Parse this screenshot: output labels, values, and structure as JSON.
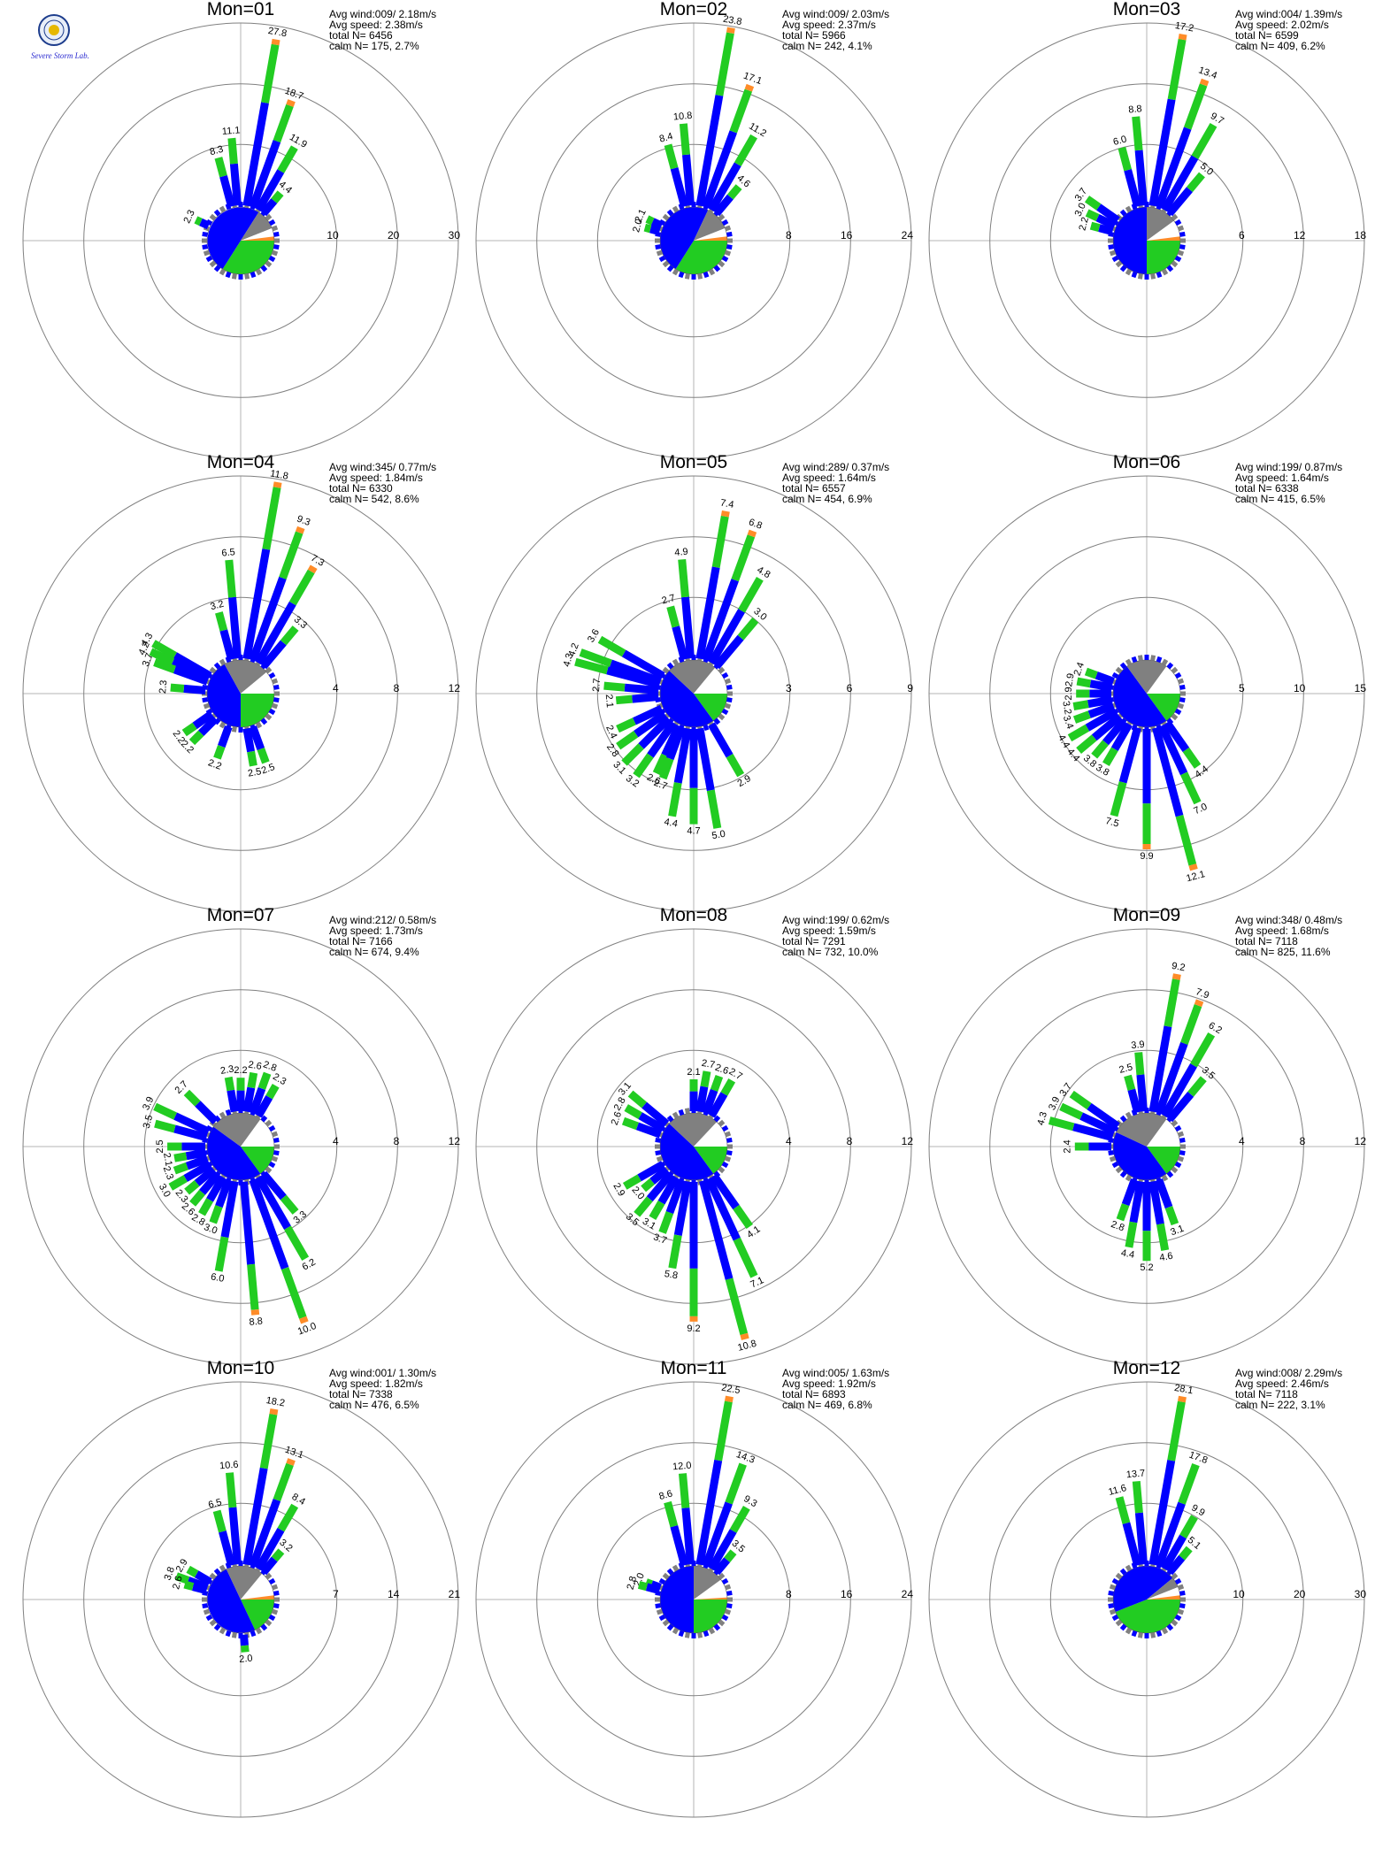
{
  "logo": {
    "text": "Severe Storm Lab."
  },
  "colors": {
    "blue": "#0000ff",
    "green": "#22cc22",
    "gray": "#808080",
    "orange": "#ff8c28",
    "ring": "#808080",
    "axis": "#b4b4b4"
  },
  "info_labels": {
    "avg_wind": "Avg wind:",
    "avg_speed": "Avg speed:",
    "total": "total N=",
    "calm": "calm N="
  },
  "chart_data": [
    {
      "type": "polar-bar",
      "title": "Mon=01",
      "rings": [
        10,
        20,
        30
      ],
      "avg_wind": "009/ 2.18m/s",
      "avg_speed": "2.38m/s",
      "total_n": "6456",
      "calm_n": "175,",
      "calm_pct": "2.7%",
      "bars": [
        [
          10,
          27.8
        ],
        [
          20,
          18.7
        ],
        [
          30,
          11.9
        ],
        [
          40,
          4.4
        ],
        [
          355,
          11.1
        ],
        [
          345,
          8.3
        ],
        [
          295,
          2.3
        ]
      ],
      "pie": {
        "blue": 50,
        "green": 34,
        "gray": 10,
        "white": 4,
        "orange": 2
      }
    },
    {
      "type": "polar-bar",
      "title": "Mon=02",
      "rings": [
        8,
        16,
        24
      ],
      "avg_wind": "009/ 2.03m/s",
      "avg_speed": "2.37m/s",
      "total_n": "5966",
      "calm_n": "242,",
      "calm_pct": "4.1%",
      "bars": [
        [
          10,
          23.8
        ],
        [
          20,
          17.1
        ],
        [
          30,
          11.2
        ],
        [
          40,
          4.6
        ],
        [
          355,
          10.8
        ],
        [
          345,
          8.4
        ],
        [
          295,
          2.1
        ],
        [
          285,
          2.0
        ]
      ],
      "pie": {
        "blue": 48,
        "green": 34,
        "gray": 12,
        "white": 4,
        "orange": 2
      }
    },
    {
      "type": "polar-bar",
      "title": "Mon=03",
      "rings": [
        6,
        12,
        18
      ],
      "avg_wind": "004/ 1.39m/s",
      "avg_speed": "2.02m/s",
      "total_n": "6599",
      "calm_n": "409,",
      "calm_pct": "6.2%",
      "bars": [
        [
          10,
          17.2
        ],
        [
          20,
          13.4
        ],
        [
          30,
          9.7
        ],
        [
          40,
          5.0
        ],
        [
          355,
          8.8
        ],
        [
          345,
          6.0
        ],
        [
          305,
          3.7
        ],
        [
          295,
          3.0
        ],
        [
          285,
          2.2
        ]
      ],
      "pie": {
        "blue": 50,
        "green": 25,
        "gray": 15,
        "white": 8,
        "orange": 2
      }
    },
    {
      "type": "polar-bar",
      "title": "Mon=04",
      "rings": [
        4,
        8,
        12
      ],
      "avg_wind": "345/ 0.77m/s",
      "avg_speed": "1.84m/s",
      "total_n": "6330",
      "calm_n": "542,",
      "calm_pct": "8.6%",
      "bars": [
        [
          10,
          11.8
        ],
        [
          20,
          9.3
        ],
        [
          30,
          7.3
        ],
        [
          40,
          3.3
        ],
        [
          355,
          6.5
        ],
        [
          345,
          3.2
        ],
        [
          300,
          4.3
        ],
        [
          295,
          4.2
        ],
        [
          290,
          3.7
        ],
        [
          275,
          2.3
        ],
        [
          235,
          2.2
        ],
        [
          225,
          2.2
        ],
        [
          200,
          2.2
        ],
        [
          170,
          2.5
        ],
        [
          160,
          2.5
        ]
      ],
      "pie": {
        "blue": 42,
        "green": 25,
        "gray": 22,
        "white": 11
      }
    },
    {
      "type": "polar-bar",
      "title": "Mon=05",
      "rings": [
        3,
        6,
        9
      ],
      "avg_wind": "289/ 0.37m/s",
      "avg_speed": "1.64m/s",
      "total_n": "6557",
      "calm_n": "454,",
      "calm_pct": "6.9%",
      "bars": [
        [
          10,
          7.4
        ],
        [
          20,
          6.8
        ],
        [
          30,
          4.8
        ],
        [
          40,
          3.0
        ],
        [
          355,
          4.9
        ],
        [
          345,
          2.7
        ],
        [
          300,
          3.6
        ],
        [
          290,
          4.2
        ],
        [
          285,
          4.3
        ],
        [
          275,
          2.7
        ],
        [
          265,
          2.1
        ],
        [
          245,
          2.4
        ],
        [
          235,
          2.8
        ],
        [
          225,
          3.1
        ],
        [
          215,
          3.2
        ],
        [
          205,
          2.6
        ],
        [
          200,
          2.7
        ],
        [
          190,
          4.4
        ],
        [
          180,
          4.7
        ],
        [
          170,
          5.0
        ],
        [
          150,
          2.9
        ]
      ],
      "pie": {
        "blue": 47,
        "green": 15,
        "gray": 24,
        "white": 14
      }
    },
    {
      "type": "polar-bar",
      "title": "Mon=06",
      "rings": [
        5,
        10,
        15
      ],
      "avg_wind": "199/ 0.87m/s",
      "avg_speed": "1.64m/s",
      "total_n": "6338",
      "calm_n": "415,",
      "calm_pct": "6.5%",
      "bars": [
        [
          290,
          2.4
        ],
        [
          280,
          2.9
        ],
        [
          270,
          2.9
        ],
        [
          260,
          3.2
        ],
        [
          250,
          3.4
        ],
        [
          240,
          4.4
        ],
        [
          230,
          4.4
        ],
        [
          220,
          3.8
        ],
        [
          210,
          3.8
        ],
        [
          195,
          7.5
        ],
        [
          180,
          9.9
        ],
        [
          165,
          12.1
        ],
        [
          155,
          7.0
        ],
        [
          145,
          4.4
        ]
      ],
      "pie": {
        "blue": 50,
        "green": 15,
        "gray": 20,
        "white": 15
      }
    },
    {
      "type": "polar-bar",
      "title": "Mon=07",
      "rings": [
        4,
        8,
        12
      ],
      "avg_wind": "212/ 0.58m/s",
      "avg_speed": "1.73m/s",
      "total_n": "7166",
      "calm_n": "674,",
      "calm_pct": "9.4%",
      "bars": [
        [
          350,
          2.3
        ],
        [
          0,
          2.2
        ],
        [
          10,
          2.6
        ],
        [
          20,
          2.8
        ],
        [
          30,
          2.3
        ],
        [
          295,
          3.9
        ],
        [
          285,
          3.5
        ],
        [
          315,
          2.7
        ],
        [
          270,
          2.5
        ],
        [
          260,
          2.1
        ],
        [
          250,
          2.3
        ],
        [
          240,
          3.0
        ],
        [
          230,
          2.3
        ],
        [
          220,
          2.6
        ],
        [
          210,
          2.8
        ],
        [
          200,
          3.0
        ],
        [
          190,
          6.0
        ],
        [
          175,
          8.8
        ],
        [
          160,
          10.0
        ],
        [
          150,
          6.2
        ],
        [
          140,
          3.3
        ]
      ],
      "pie": {
        "blue": 45,
        "green": 15,
        "gray": 25,
        "white": 15
      }
    },
    {
      "type": "polar-bar",
      "title": "Mon=08",
      "rings": [
        4,
        8,
        12
      ],
      "avg_wind": "199/ 0.62m/s",
      "avg_speed": "1.59m/s",
      "total_n": "7291",
      "calm_n": "732,",
      "calm_pct": "10.0%",
      "bars": [
        [
          0,
          2.1
        ],
        [
          10,
          2.7
        ],
        [
          20,
          2.6
        ],
        [
          30,
          2.7
        ],
        [
          310,
          3.1
        ],
        [
          300,
          2.8
        ],
        [
          290,
          2.6
        ],
        [
          240,
          2.9
        ],
        [
          230,
          2.0
        ],
        [
          220,
          3.5
        ],
        [
          210,
          3.1
        ],
        [
          200,
          3.7
        ],
        [
          190,
          5.8
        ],
        [
          180,
          9.2
        ],
        [
          165,
          10.8
        ],
        [
          155,
          7.1
        ],
        [
          145,
          4.1
        ]
      ],
      "pie": {
        "blue": 47,
        "green": 15,
        "gray": 25,
        "white": 13
      }
    },
    {
      "type": "polar-bar",
      "title": "Mon=09",
      "rings": [
        4,
        8,
        12
      ],
      "avg_wind": "348/ 0.48m/s",
      "avg_speed": "1.68m/s",
      "total_n": "7118",
      "calm_n": "825,",
      "calm_pct": "11.6%",
      "bars": [
        [
          10,
          9.2
        ],
        [
          20,
          7.9
        ],
        [
          30,
          6.2
        ],
        [
          40,
          3.5
        ],
        [
          355,
          3.9
        ],
        [
          345,
          2.5
        ],
        [
          285,
          4.3
        ],
        [
          295,
          3.9
        ],
        [
          305,
          3.7
        ],
        [
          270,
          2.4
        ],
        [
          200,
          2.8
        ],
        [
          190,
          4.4
        ],
        [
          180,
          5.2
        ],
        [
          170,
          4.6
        ],
        [
          160,
          3.1
        ]
      ],
      "pie": {
        "blue": 42,
        "green": 15,
        "gray": 28,
        "white": 15
      }
    },
    {
      "type": "polar-bar",
      "title": "Mon=10",
      "rings": [
        7,
        14,
        21
      ],
      "avg_wind": "001/ 1.30m/s",
      "avg_speed": "1.82m/s",
      "total_n": "7338",
      "calm_n": "476,",
      "calm_pct": "6.5%",
      "bars": [
        [
          10,
          18.2
        ],
        [
          20,
          13.1
        ],
        [
          30,
          8.4
        ],
        [
          40,
          3.2
        ],
        [
          355,
          10.6
        ],
        [
          345,
          6.5
        ],
        [
          300,
          2.9
        ],
        [
          290,
          3.8
        ],
        [
          285,
          2.6
        ],
        [
          175,
          2.0
        ]
      ],
      "pie": {
        "blue": 50,
        "green": 18,
        "gray": 18,
        "white": 12,
        "orange": 2
      }
    },
    {
      "type": "polar-bar",
      "title": "Mon=11",
      "rings": [
        8,
        16,
        24
      ],
      "avg_wind": "005/ 1.63m/s",
      "avg_speed": "1.92m/s",
      "total_n": "6893",
      "calm_n": "469,",
      "calm_pct": "6.8%",
      "bars": [
        [
          10,
          22.5
        ],
        [
          20,
          14.3
        ],
        [
          30,
          9.3
        ],
        [
          40,
          3.5
        ],
        [
          355,
          12.0
        ],
        [
          345,
          8.6
        ],
        [
          290,
          2.0
        ],
        [
          285,
          2.8
        ]
      ],
      "pie": {
        "blue": 50,
        "green": 25,
        "gray": 15,
        "white": 9,
        "orange": 1
      }
    },
    {
      "type": "polar-bar",
      "title": "Mon=12",
      "rings": [
        10,
        20,
        30
      ],
      "avg_wind": "008/ 2.29m/s",
      "avg_speed": "2.46m/s",
      "total_n": "7118",
      "calm_n": "222,",
      "calm_pct": "3.1%",
      "bars": [
        [
          10,
          28.1
        ],
        [
          20,
          17.8
        ],
        [
          30,
          9.9
        ],
        [
          40,
          5.1
        ],
        [
          355,
          13.7
        ],
        [
          345,
          11.6
        ]
      ],
      "pie": {
        "blue": 45,
        "green": 44,
        "gray": 5,
        "white": 4,
        "orange": 2
      }
    }
  ]
}
